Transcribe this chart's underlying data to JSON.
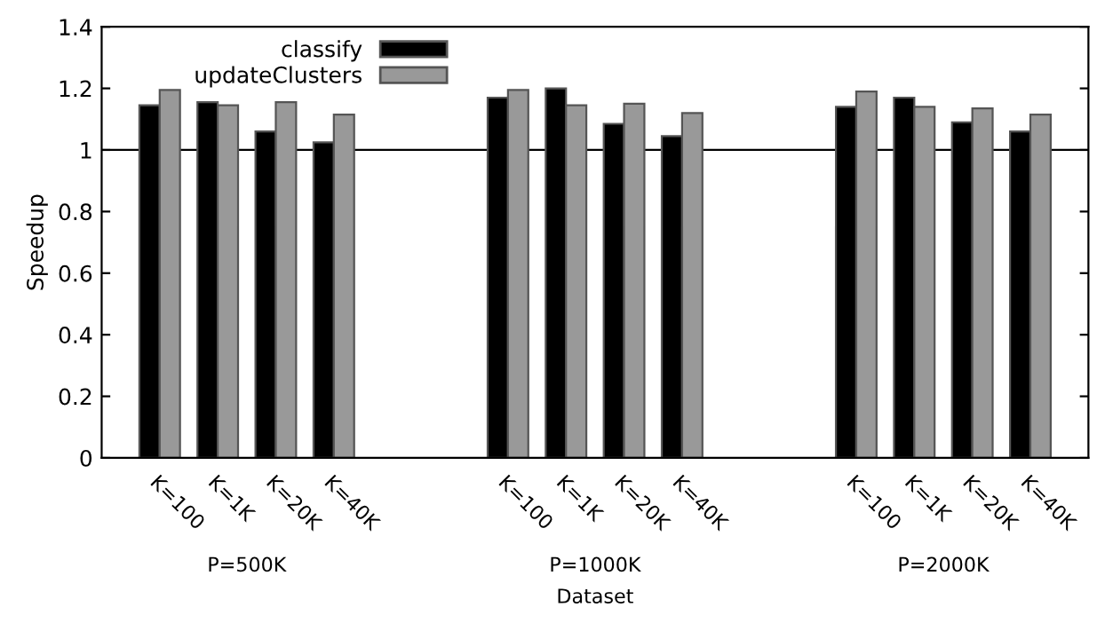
{
  "chart_data": {
    "type": "bar",
    "ylabel": "Speedup",
    "xlabel": "Dataset",
    "categories": [
      "K=100",
      "K=1K",
      "K=20K",
      "K=40K",
      null,
      null,
      "K=100",
      "K=1K",
      "K=20K",
      "K=40K",
      null,
      null,
      "K=100",
      "K=1K",
      "K=20K",
      "K=40K"
    ],
    "series": [
      {
        "name": "classify",
        "color": "#000000",
        "values": [
          1.145,
          1.155,
          1.06,
          1.025,
          null,
          null,
          1.17,
          1.2,
          1.085,
          1.045,
          null,
          null,
          1.14,
          1.17,
          1.09,
          1.06
        ]
      },
      {
        "name": "updateClusters",
        "color": "#999999",
        "values": [
          1.195,
          1.145,
          1.155,
          1.115,
          null,
          null,
          1.195,
          1.145,
          1.15,
          1.12,
          null,
          null,
          1.19,
          1.14,
          1.135,
          1.115
        ]
      }
    ],
    "ylim": [
      0,
      1.4
    ],
    "yticks": [
      0,
      0.2,
      0.4,
      0.6,
      0.8,
      1,
      1.2,
      1.4
    ],
    "ref_lines": [
      {
        "axis": "y",
        "value": 1,
        "color": "#000000"
      }
    ],
    "annotations": [
      "P=500K",
      "P=1000K",
      "P=2000K"
    ],
    "grid": false,
    "legend": "top left"
  }
}
